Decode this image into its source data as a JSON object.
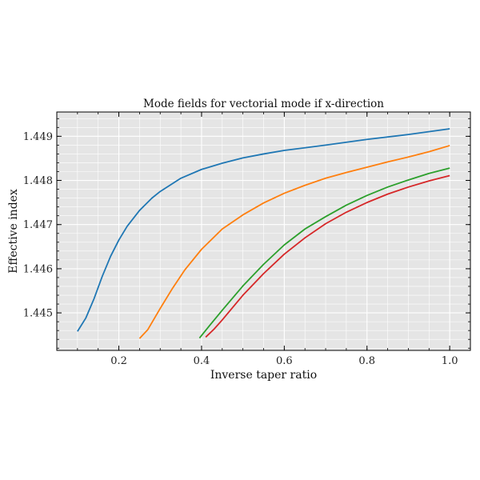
{
  "chart_data": {
    "type": "line",
    "title": "Mode fields for vectorial mode if x-direction",
    "xlabel": "Inverse taper ratio",
    "ylabel": "Effective index",
    "xlim": [
      0.05,
      1.05
    ],
    "ylim": [
      1.44415,
      1.44955
    ],
    "x_ticks": [
      0.2,
      0.4,
      0.6,
      0.8,
      1.0
    ],
    "x_tick_labels": [
      "0.2",
      "0.4",
      "0.6",
      "0.8",
      "1.0"
    ],
    "y_ticks": [
      1.445,
      1.446,
      1.447,
      1.448,
      1.449
    ],
    "y_tick_labels": [
      "1.445",
      "1.446",
      "1.447",
      "1.448",
      "1.449"
    ],
    "grid": true,
    "background": "#e5e5e5",
    "series": [
      {
        "color": "#1f77b4",
        "x": [
          0.1,
          0.12,
          0.14,
          0.16,
          0.18,
          0.2,
          0.22,
          0.25,
          0.28,
          0.3,
          0.35,
          0.4,
          0.45,
          0.5,
          0.55,
          0.6,
          0.7,
          0.8,
          0.9,
          1.0
        ],
        "y": [
          1.44458,
          1.44488,
          1.44532,
          1.44583,
          1.44628,
          1.44665,
          1.44696,
          1.44732,
          1.4476,
          1.44775,
          1.44805,
          1.44825,
          1.44839,
          1.44851,
          1.4486,
          1.44868,
          1.4488,
          1.44893,
          1.44904,
          1.44917
        ]
      },
      {
        "color": "#ff7f0e",
        "x": [
          0.25,
          0.27,
          0.3,
          0.33,
          0.36,
          0.4,
          0.45,
          0.5,
          0.55,
          0.6,
          0.65,
          0.7,
          0.75,
          0.8,
          0.85,
          0.9,
          0.95,
          1.0
        ],
        "y": [
          1.44442,
          1.44462,
          1.4451,
          1.44556,
          1.44598,
          1.44644,
          1.4469,
          1.44722,
          1.44749,
          1.44771,
          1.44789,
          1.44805,
          1.44818,
          1.4483,
          1.44842,
          1.44853,
          1.44865,
          1.44879
        ]
      },
      {
        "color": "#2ca02c",
        "x": [
          0.395,
          0.42,
          0.45,
          0.5,
          0.55,
          0.6,
          0.65,
          0.7,
          0.75,
          0.8,
          0.85,
          0.9,
          0.95,
          1.0
        ],
        "y": [
          1.44443,
          1.44472,
          1.44506,
          1.44561,
          1.4461,
          1.44654,
          1.4469,
          1.44718,
          1.44744,
          1.44766,
          1.44785,
          1.44801,
          1.44816,
          1.44828
        ]
      },
      {
        "color": "#d62728",
        "x": [
          0.41,
          0.43,
          0.45,
          0.5,
          0.55,
          0.6,
          0.65,
          0.7,
          0.75,
          0.8,
          0.85,
          0.9,
          0.95,
          1.0
        ],
        "y": [
          1.44445,
          1.44463,
          1.44484,
          1.4454,
          1.44589,
          1.44633,
          1.4467,
          1.44702,
          1.44728,
          1.4475,
          1.44769,
          1.44785,
          1.44799,
          1.44811
        ]
      }
    ]
  }
}
